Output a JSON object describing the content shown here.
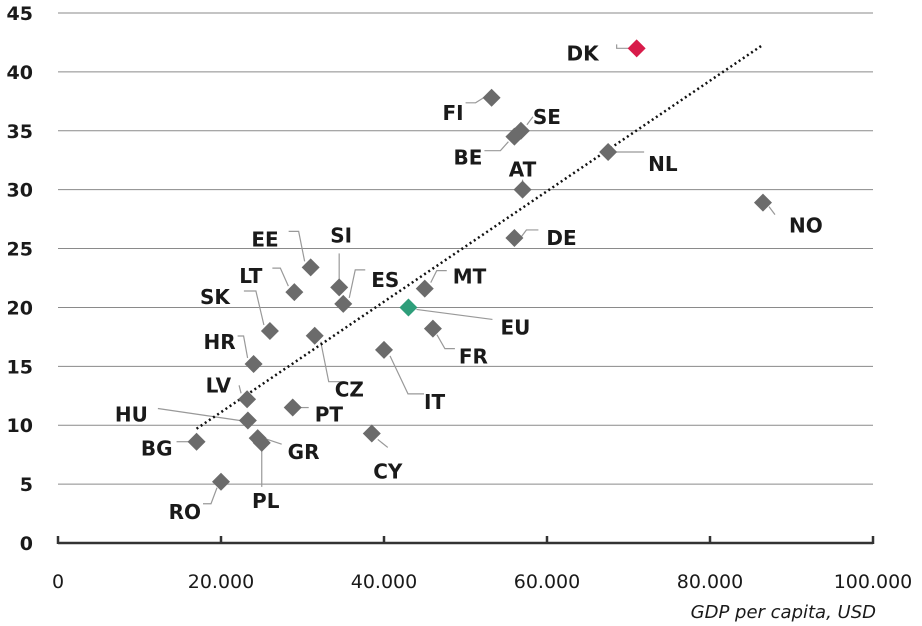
{
  "chart_data": {
    "type": "scatter",
    "xlabel": "GDP per capita, USD",
    "ylabel": "",
    "xlim": [
      0,
      100000
    ],
    "ylim": [
      0,
      45
    ],
    "x_ticks": [
      {
        "value": 0,
        "label": "0"
      },
      {
        "value": 20000,
        "label": "20.000"
      },
      {
        "value": 40000,
        "label": "40.000"
      },
      {
        "value": 60000,
        "label": "60.000"
      },
      {
        "value": 80000,
        "label": "80.000"
      },
      {
        "value": 100000,
        "label": "100.000"
      }
    ],
    "y_ticks": [
      {
        "value": 0,
        "label": "0"
      },
      {
        "value": 5,
        "label": "5"
      },
      {
        "value": 10,
        "label": "10"
      },
      {
        "value": 15,
        "label": "15"
      },
      {
        "value": 20,
        "label": "20"
      },
      {
        "value": 25,
        "label": "25"
      },
      {
        "value": 30,
        "label": "30"
      },
      {
        "value": 35,
        "label": "35"
      },
      {
        "value": 40,
        "label": "40"
      },
      {
        "value": 45,
        "label": "45"
      }
    ],
    "grid": "horizontal",
    "colors": {
      "default": "#6b6b6b",
      "highlight_dk": "#d81b4a",
      "highlight_eu": "#2e9e7a",
      "grid": "#8a8a8a",
      "axis": "#333333",
      "trend": "#111111"
    },
    "points": [
      {
        "label": "DK",
        "x": 71000,
        "y": 42.0,
        "color": "highlight_dk"
      },
      {
        "label": "FI",
        "x": 53200,
        "y": 37.8
      },
      {
        "label": "SE",
        "x": 56800,
        "y": 35.0
      },
      {
        "label": "BE",
        "x": 56000,
        "y": 34.5
      },
      {
        "label": "NL",
        "x": 67500,
        "y": 33.2
      },
      {
        "label": "AT",
        "x": 57000,
        "y": 30.0
      },
      {
        "label": "NO",
        "x": 86500,
        "y": 28.9
      },
      {
        "label": "DE",
        "x": 56000,
        "y": 25.9
      },
      {
        "label": "EE",
        "x": 31000,
        "y": 23.4
      },
      {
        "label": "SI",
        "x": 34500,
        "y": 21.7
      },
      {
        "label": "LT",
        "x": 29000,
        "y": 21.3
      },
      {
        "label": "ES",
        "x": 35000,
        "y": 20.3
      },
      {
        "label": "MT",
        "x": 45000,
        "y": 21.6
      },
      {
        "label": "EU",
        "x": 43000,
        "y": 20.0,
        "color": "highlight_eu"
      },
      {
        "label": "SK",
        "x": 26000,
        "y": 18.0
      },
      {
        "label": "FR",
        "x": 46000,
        "y": 18.2
      },
      {
        "label": "CZ",
        "x": 31500,
        "y": 17.6
      },
      {
        "label": "HR",
        "x": 24000,
        "y": 15.2
      },
      {
        "label": "IT",
        "x": 40000,
        "y": 16.4
      },
      {
        "label": "LV",
        "x": 23200,
        "y": 12.2
      },
      {
        "label": "PT",
        "x": 28800,
        "y": 11.5
      },
      {
        "label": "HU",
        "x": 23300,
        "y": 10.4
      },
      {
        "label": "CY",
        "x": 38500,
        "y": 9.3
      },
      {
        "label": "GR",
        "x": 24500,
        "y": 8.9
      },
      {
        "label": "BG",
        "x": 17000,
        "y": 8.6
      },
      {
        "label": "PL",
        "x": 25000,
        "y": 8.5
      },
      {
        "label": "RO",
        "x": 20000,
        "y": 5.2
      }
    ],
    "trendline": {
      "x": [
        17000,
        86500
      ],
      "y": [
        9.7,
        42.3
      ]
    }
  }
}
